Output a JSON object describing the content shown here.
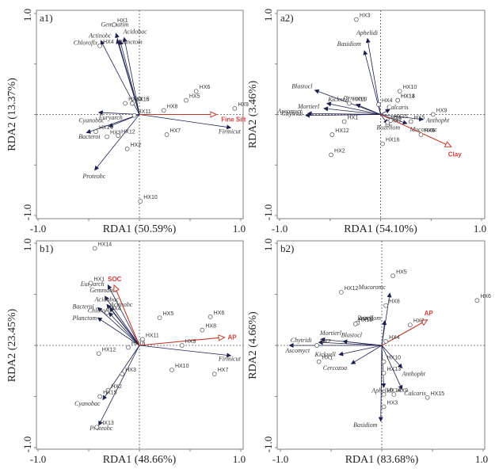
{
  "chart_data": [
    {
      "panel": "a1)",
      "type": "scatter",
      "subtype": "RDA biplot",
      "xlabel": "RDA1 (50.59%)",
      "ylabel": "RDA2 (13.37%)",
      "xlim": [
        -1.0,
        1.0
      ],
      "ylim": [
        -1.0,
        1.0
      ],
      "xticklabels": [
        "-1.0",
        "1.0"
      ],
      "yticklabels": [
        "1.0",
        "-1.0"
      ],
      "species": [
        {
          "name": "Gemmatim",
          "x": -0.23,
          "y": 0.8,
          "lx": -0.38,
          "ly": 0.87
        },
        {
          "name": "Acidobac",
          "x": -0.15,
          "y": 0.76,
          "lx": -0.16,
          "ly": 0.8
        },
        {
          "name": "Actinobc",
          "x": -0.38,
          "y": 0.73,
          "lx": -0.5,
          "ly": 0.76
        },
        {
          "name": "Chloroflx",
          "x": -0.22,
          "y": 0.74,
          "lx": -0.65,
          "ly": 0.69
        },
        {
          "name": "Planctom",
          "x": -0.19,
          "y": 0.73,
          "lx": -0.21,
          "ly": 0.7
        },
        {
          "name": "Euryarch",
          "x": -0.4,
          "y": 0.02,
          "lx": -0.4,
          "ly": -0.05
        },
        {
          "name": "Cyanobac",
          "x": -0.3,
          "y": -0.12,
          "lx": -0.6,
          "ly": -0.08
        },
        {
          "name": "Bacteroi",
          "x": -0.52,
          "y": -0.18,
          "lx": -0.6,
          "ly": -0.24
        },
        {
          "name": "Proteobc",
          "x": -0.44,
          "y": -0.55,
          "lx": -0.56,
          "ly": -0.63
        },
        {
          "name": "Firmicut",
          "x": 0.9,
          "y": -0.13,
          "lx": 0.78,
          "ly": -0.19
        }
      ],
      "sites": [
        {
          "name": "HX1",
          "x": -0.25,
          "y": 0.89
        },
        {
          "name": "HX2",
          "x": -0.12,
          "y": -0.34
        },
        {
          "name": "HX3",
          "x": -0.32,
          "y": -0.22
        },
        {
          "name": "HX4",
          "x": -0.39,
          "y": 0.68
        },
        {
          "name": "HX5",
          "x": 0.46,
          "y": 0.14
        },
        {
          "name": "HX6",
          "x": 0.56,
          "y": 0.23
        },
        {
          "name": "HX7",
          "x": 0.27,
          "y": -0.2
        },
        {
          "name": "HX8",
          "x": 0.24,
          "y": 0.04
        },
        {
          "name": "HX9",
          "x": 0.94,
          "y": 0.06
        },
        {
          "name": "HX10",
          "x": 0.01,
          "y": -0.86
        },
        {
          "name": "HX11",
          "x": -0.05,
          "y": -0.01
        },
        {
          "name": "HX12",
          "x": -0.21,
          "y": -0.21
        },
        {
          "name": "HX13",
          "x": -0.14,
          "y": 0.11
        },
        {
          "name": "HX14",
          "x": -0.43,
          "y": -0.17
        },
        {
          "name": "HX15",
          "x": -0.07,
          "y": 0.11
        },
        {
          "name": "HX16",
          "x": -0.07,
          "y": 0.11
        }
      ],
      "env": [
        {
          "name": "Fine Silt",
          "x": 0.76,
          "y": 0.0
        }
      ]
    },
    {
      "panel": "a2)",
      "type": "scatter",
      "subtype": "RDA biplot",
      "xlabel": "RDA1 (54.10%)",
      "ylabel": "RDA2 (3.46%)",
      "xlim": [
        -1.0,
        1.0
      ],
      "ylim": [
        -1.0,
        1.0
      ],
      "xticklabels": [
        "-1.0",
        "1.0"
      ],
      "yticklabels": [
        "1.0",
        "-1.0"
      ],
      "species": [
        {
          "name": "Aphelidi",
          "x": -0.13,
          "y": 0.75,
          "lx": -0.24,
          "ly": 0.79
        },
        {
          "name": "Basidiom",
          "x": -0.16,
          "y": 0.63,
          "lx": -0.43,
          "ly": 0.68
        },
        {
          "name": "Blastocl",
          "x": -0.65,
          "y": 0.24,
          "lx": -0.88,
          "ly": 0.26
        },
        {
          "name": "Kickxell",
          "x": -0.53,
          "y": 0.11,
          "lx": -0.52,
          "ly": 0.13
        },
        {
          "name": "Cercozoa",
          "x": -0.24,
          "y": 0.1,
          "lx": -0.37,
          "ly": 0.14
        },
        {
          "name": "Mortierl",
          "x": -0.56,
          "y": 0.06,
          "lx": -0.82,
          "ly": 0.06
        },
        {
          "name": "Ascomyct",
          "x": -0.72,
          "y": 0.01,
          "lx": -1.02,
          "ly": 0.01
        },
        {
          "name": "Chytridi",
          "x": -0.74,
          "y": -0.01,
          "lx": -0.98,
          "ly": -0.01
        },
        {
          "name": "Rozellom",
          "x": 0.07,
          "y": -0.09,
          "lx": -0.04,
          "ly": -0.15
        },
        {
          "name": "Calcaris",
          "x": 0.09,
          "y": 0.05,
          "lx": 0.06,
          "ly": 0.05
        },
        {
          "name": "Anthopht",
          "x": 0.42,
          "y": -0.05,
          "lx": 0.45,
          "ly": -0.08
        },
        {
          "name": "Mucoromc",
          "x": 0.26,
          "y": -0.09,
          "lx": 0.29,
          "ly": -0.17
        }
      ],
      "sites": [
        {
          "name": "HX1",
          "x": -0.36,
          "y": -0.07
        },
        {
          "name": "HX2",
          "x": -0.49,
          "y": -0.4
        },
        {
          "name": "HX3",
          "x": -0.24,
          "y": 0.94
        },
        {
          "name": "HX4",
          "x": -0.02,
          "y": 0.1
        },
        {
          "name": "HX5",
          "x": 0.3,
          "y": -0.07
        },
        {
          "name": "HX6",
          "x": 0.4,
          "y": -0.2
        },
        {
          "name": "HX7",
          "x": 0.07,
          "y": -0.1
        },
        {
          "name": "HX8",
          "x": 0.07,
          "y": -0.08
        },
        {
          "name": "HX9",
          "x": 0.52,
          "y": 0.0
        },
        {
          "name": "HX10",
          "x": 0.19,
          "y": 0.23
        },
        {
          "name": "HX11",
          "x": -0.31,
          "y": 0.11
        },
        {
          "name": "HX12",
          "x": -0.48,
          "y": -0.2
        },
        {
          "name": "HX13",
          "x": 0.17,
          "y": 0.14
        },
        {
          "name": "HX14",
          "x": 0.17,
          "y": 0.14
        },
        {
          "name": "HX15",
          "x": 0.1,
          "y": -0.06
        },
        {
          "name": "HX16",
          "x": 0.02,
          "y": -0.29
        }
      ],
      "env": [
        {
          "name": "Clay",
          "x": 0.7,
          "y": -0.32
        }
      ]
    },
    {
      "panel": "b1)",
      "type": "scatter",
      "subtype": "RDA biplot",
      "xlabel": "RDA1 (48.66%)",
      "ylabel": "RDA2 (23.45%)",
      "xlim": [
        -1.0,
        1.0
      ],
      "ylim": [
        -1.0,
        1.0
      ],
      "xticklabels": [
        "-1.0",
        "1.0"
      ],
      "yticklabels": [
        "1.0",
        "-1.0"
      ],
      "species": [
        {
          "name": "Euryarch",
          "x": -0.31,
          "y": 0.59,
          "lx": -0.58,
          "ly": 0.58
        },
        {
          "name": "Gemmatim",
          "x": -0.34,
          "y": 0.48,
          "lx": -0.49,
          "ly": 0.52
        },
        {
          "name": "Acidobac",
          "x": -0.32,
          "y": 0.4,
          "lx": -0.44,
          "ly": 0.43
        },
        {
          "name": "Actinobc",
          "x": -0.29,
          "y": 0.37,
          "lx": -0.29,
          "ly": 0.38
        },
        {
          "name": "Bacteroi",
          "x": -0.41,
          "y": 0.37,
          "lx": -0.66,
          "ly": 0.36
        },
        {
          "name": "Chloroflx",
          "x": -0.3,
          "y": 0.32,
          "lx": -0.51,
          "ly": 0.32
        },
        {
          "name": "Planctom",
          "x": -0.41,
          "y": 0.27,
          "lx": -0.66,
          "ly": 0.25
        },
        {
          "name": "Cyanobac",
          "x": -0.36,
          "y": -0.53,
          "lx": -0.64,
          "ly": -0.59
        },
        {
          "name": "Proteobc",
          "x": -0.4,
          "y": -0.78,
          "lx": -0.49,
          "ly": -0.83
        },
        {
          "name": "Firmicut",
          "x": 0.9,
          "y": -0.1,
          "lx": 0.78,
          "ly": -0.15
        }
      ],
      "sites": [
        {
          "name": "HX1",
          "x": -0.48,
          "y": 0.61
        },
        {
          "name": "HX2",
          "x": -0.31,
          "y": -0.44
        },
        {
          "name": "HX3",
          "x": -0.17,
          "y": -0.28
        },
        {
          "name": "HX4",
          "x": -0.32,
          "y": 0.32
        },
        {
          "name": "HX5",
          "x": 0.2,
          "y": 0.27
        },
        {
          "name": "HX6",
          "x": 0.7,
          "y": 0.28
        },
        {
          "name": "HX7",
          "x": 0.74,
          "y": -0.28
        },
        {
          "name": "HX8",
          "x": 0.62,
          "y": 0.15
        },
        {
          "name": "HX9",
          "x": 0.42,
          "y": 0.0
        },
        {
          "name": "HX10",
          "x": 0.32,
          "y": -0.24
        },
        {
          "name": "HX11",
          "x": 0.03,
          "y": 0.06
        },
        {
          "name": "HX12",
          "x": -0.4,
          "y": -0.08
        },
        {
          "name": "HX13",
          "x": -0.42,
          "y": -0.8
        },
        {
          "name": "HX14",
          "x": -0.44,
          "y": 0.95
        },
        {
          "name": "HX15",
          "x": -0.39,
          "y": -0.5
        },
        {
          "name": "HX16",
          "x": -0.11,
          "y": -0.02
        }
      ],
      "env": [
        {
          "name": "SOC",
          "x": -0.25,
          "y": 0.59
        },
        {
          "name": "AP",
          "x": 0.84,
          "y": 0.08
        }
      ]
    },
    {
      "panel": "b2)",
      "type": "scatter",
      "subtype": "RDA biplot",
      "xlabel": "RDA1 (83.68%)",
      "ylabel": "RDA2 (4.66%)",
      "xlim": [
        -1.0,
        1.0
      ],
      "ylim": [
        -1.0,
        1.0
      ],
      "xticklabels": [
        "-1.0",
        "1.0"
      ],
      "yticklabels": [
        "1.0",
        "-1.0"
      ],
      "species": [
        {
          "name": "Mucoromc",
          "x": 0.08,
          "y": 0.51,
          "lx": -0.23,
          "ly": 0.55
        },
        {
          "name": "Rozellom",
          "x": 0.03,
          "y": 0.24,
          "lx": -0.24,
          "ly": 0.25
        },
        {
          "name": "Mortierl",
          "x": -0.6,
          "y": 0.06,
          "lx": -0.61,
          "ly": 0.1
        },
        {
          "name": "Blastocl",
          "x": -0.38,
          "y": 0.04,
          "lx": -0.4,
          "ly": 0.08
        },
        {
          "name": "Chytridi",
          "x": -0.62,
          "y": 0.03,
          "lx": -0.9,
          "ly": 0.03
        },
        {
          "name": "Ascomyct",
          "x": -0.91,
          "y": 0.0,
          "lx": -0.95,
          "ly": -0.07
        },
        {
          "name": "Kickxell",
          "x": -0.42,
          "y": -0.09,
          "lx": -0.66,
          "ly": -0.11
        },
        {
          "name": "Cercozoa",
          "x": -0.3,
          "y": -0.18,
          "lx": -0.58,
          "ly": -0.24
        },
        {
          "name": "Anthopht",
          "x": 0.2,
          "y": -0.22,
          "lx": 0.2,
          "ly": -0.3
        },
        {
          "name": "Calcaris",
          "x": 0.2,
          "y": -0.43,
          "lx": 0.22,
          "ly": -0.49
        },
        {
          "name": "Aphelidi",
          "x": 0.02,
          "y": -0.41,
          "lx": -0.1,
          "ly": -0.46
        },
        {
          "name": "Basidiom",
          "x": -0.01,
          "y": -0.74,
          "lx": -0.28,
          "ly": -0.8
        }
      ],
      "sites": [
        {
          "name": "HX1",
          "x": -0.62,
          "y": -0.16
        },
        {
          "name": "HX2",
          "x": -0.64,
          "y": 0.0
        },
        {
          "name": "HX3",
          "x": 0.02,
          "y": -0.6
        },
        {
          "name": "HX4",
          "x": 0.04,
          "y": 0.04
        },
        {
          "name": "HX5",
          "x": 0.11,
          "y": 0.68
        },
        {
          "name": "HX6",
          "x": 0.94,
          "y": 0.44
        },
        {
          "name": "HX7",
          "x": 0.28,
          "y": 0.2
        },
        {
          "name": "HX8",
          "x": 0.04,
          "y": 0.39
        },
        {
          "name": "HX9",
          "x": 0.12,
          "y": -0.48
        },
        {
          "name": "HX10",
          "x": 0.02,
          "y": -0.16
        },
        {
          "name": "HX11",
          "x": -0.24,
          "y": 0.22
        },
        {
          "name": "HX12",
          "x": -0.4,
          "y": 0.52
        },
        {
          "name": "HX13",
          "x": 0.02,
          "y": -0.27
        },
        {
          "name": "HX14",
          "x": 0.02,
          "y": -0.48
        },
        {
          "name": "HX15",
          "x": 0.45,
          "y": -0.51
        },
        {
          "name": "HX16",
          "x": -0.26,
          "y": 0.21
        }
      ],
      "env": [
        {
          "name": "AP",
          "x": 0.45,
          "y": 0.25
        }
      ]
    }
  ],
  "colors": {
    "species_arrow": "#1d1f4e",
    "env_arrow": "#c0392b",
    "env_label": "#d63c3c",
    "frame": "#808080"
  }
}
